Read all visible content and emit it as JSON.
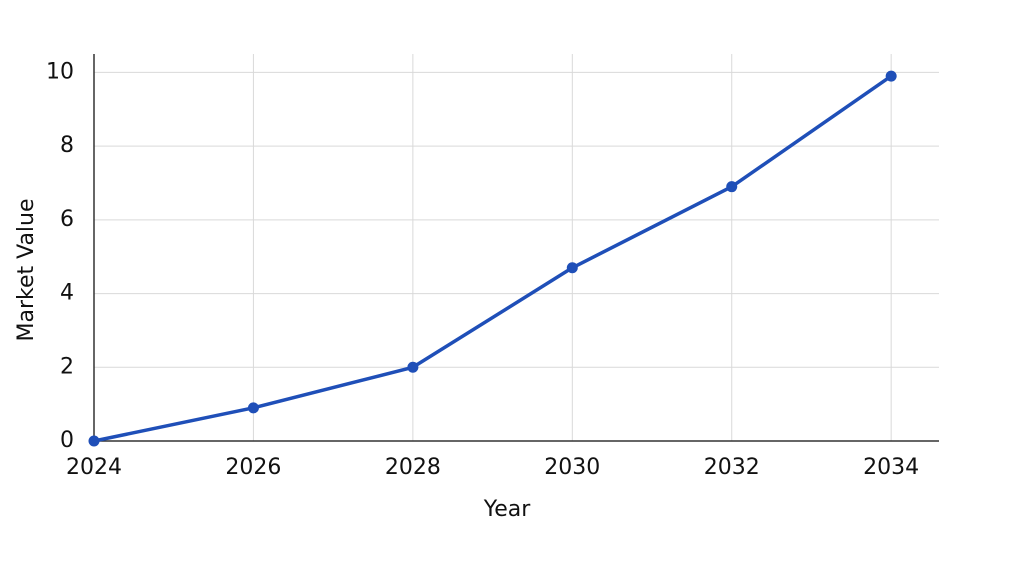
{
  "chart_data": {
    "type": "line",
    "x_label": "Year",
    "y_label": "Market Value",
    "x": [
      2024,
      2026,
      2028,
      2030,
      2032,
      2034
    ],
    "series": [
      {
        "name": "Market Value",
        "color": "#1f4fb8",
        "values": [
          0,
          0.9,
          2.0,
          4.7,
          6.9,
          9.9
        ]
      }
    ],
    "xlim": [
      2024,
      2034.6
    ],
    "ylim": [
      0,
      10.5
    ],
    "xticks": [
      2024,
      2026,
      2028,
      2030,
      2032,
      2034
    ],
    "yticks": [
      0,
      2,
      4,
      6,
      8,
      10
    ],
    "grid": true
  }
}
